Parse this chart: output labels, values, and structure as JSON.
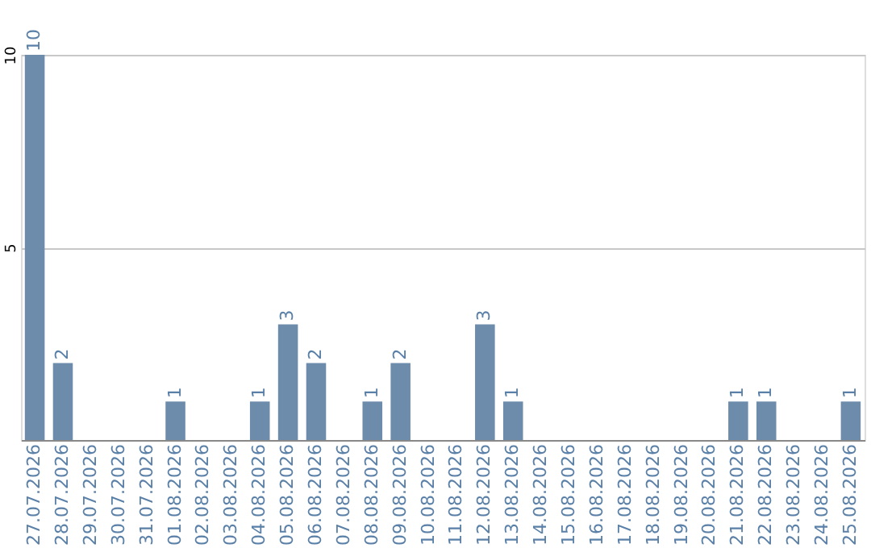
{
  "chart_data": {
    "type": "bar",
    "categories": [
      "27.07.2026",
      "28.07.2026",
      "29.07.2026",
      "30.07.2026",
      "31.07.2026",
      "01.08.2026",
      "02.08.2026",
      "03.08.2026",
      "04.08.2026",
      "05.08.2026",
      "06.08.2026",
      "07.08.2026",
      "08.08.2026",
      "09.08.2026",
      "10.08.2026",
      "11.08.2026",
      "12.08.2026",
      "13.08.2026",
      "14.08.2026",
      "15.08.2026",
      "16.08.2026",
      "17.08.2026",
      "18.08.2026",
      "19.08.2026",
      "20.08.2026",
      "21.08.2026",
      "22.08.2026",
      "23.08.2026",
      "24.08.2026",
      "25.08.2026"
    ],
    "values": [
      10,
      2,
      0,
      0,
      0,
      1,
      0,
      0,
      1,
      3,
      2,
      0,
      1,
      2,
      0,
      0,
      3,
      1,
      0,
      0,
      0,
      0,
      0,
      0,
      0,
      1,
      1,
      0,
      0,
      1
    ],
    "value_labels": [
      "10",
      "2",
      null,
      null,
      null,
      "1",
      null,
      null,
      "1",
      "3",
      "2",
      null,
      "1",
      "2",
      null,
      null,
      "3",
      "1",
      null,
      null,
      null,
      null,
      null,
      null,
      null,
      "1",
      "1",
      null,
      null,
      "1"
    ],
    "color": "#6d8bab",
    "ylim": [
      0,
      10
    ],
    "yticks": [
      5,
      10
    ],
    "grid": "y"
  }
}
